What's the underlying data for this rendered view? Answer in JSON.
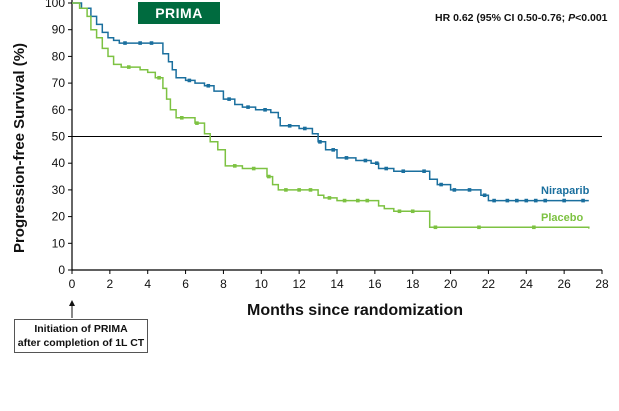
{
  "badge": "PRIMA",
  "hr": {
    "prefix": "HR 0.62 (95% CI 0.50-0.76; ",
    "p_label": "P",
    "p_value": "<0.001"
  },
  "annotation": {
    "line1": "Initiation of PRIMA",
    "line2": "after completion of 1L CT"
  },
  "colors": {
    "niraparib": "#1a6f9e",
    "placebo": "#7dc242",
    "badge": "#006b3f",
    "axis": "#000000"
  },
  "chart_data": {
    "type": "line",
    "step": true,
    "xlabel": "Months since randomization",
    "ylabel": "Progression-free Survival (%)",
    "xlim": [
      0,
      28
    ],
    "ylim": [
      0,
      100
    ],
    "xticks": [
      0,
      2,
      4,
      6,
      8,
      10,
      12,
      14,
      16,
      18,
      20,
      22,
      24,
      26,
      28
    ],
    "yticks": [
      0,
      10,
      20,
      30,
      40,
      50,
      60,
      70,
      80,
      90,
      100
    ],
    "reference_line": {
      "y": 50
    },
    "grid": false,
    "series": [
      {
        "name": "Niraparib",
        "x": [
          0,
          0.5,
          1,
          1.3,
          1.6,
          1.9,
          2.2,
          2.5,
          3,
          4.5,
          4.8,
          5.1,
          5.3,
          5.5,
          6,
          6.5,
          7,
          7.5,
          8,
          8.6,
          9,
          9.7,
          10.5,
          10.9,
          11,
          12,
          12.7,
          13,
          13.4,
          14,
          15,
          15.8,
          16.2,
          17,
          18.9,
          19.3,
          20,
          21.3,
          21.6,
          22,
          23,
          25,
          27.3
        ],
        "y": [
          100,
          98,
          95,
          92,
          89,
          87,
          86,
          85,
          85,
          85,
          81,
          78,
          75,
          72,
          71,
          70,
          69,
          67,
          64,
          62,
          61,
          60,
          59,
          57,
          54,
          53,
          51,
          48,
          45,
          42,
          41,
          40,
          38,
          37,
          34,
          32,
          30,
          30,
          28,
          26,
          26,
          26,
          26
        ],
        "censor_x": [
          2.8,
          3.6,
          4.2,
          6.2,
          7.2,
          8.3,
          9.3,
          10.2,
          11.5,
          12.3,
          13.1,
          13.8,
          14.5,
          15.5,
          16.1,
          16.6,
          17.5,
          18.6,
          19.5,
          20.2,
          21,
          21.8,
          22.3,
          23,
          23.5,
          24,
          24.5,
          25,
          26,
          27
        ]
      },
      {
        "name": "Placebo",
        "x": [
          0,
          0.4,
          0.8,
          1,
          1.3,
          1.6,
          1.9,
          2.2,
          2.6,
          3.6,
          4,
          4.4,
          4.8,
          5,
          5.2,
          5.5,
          6.5,
          7,
          7.3,
          7.7,
          8.1,
          9,
          10.3,
          10.6,
          10.9,
          13,
          13.3,
          14,
          15,
          16,
          16.2,
          16.5,
          17,
          18.7,
          18.9,
          19.5,
          20,
          21.5,
          21.8,
          25,
          27.3
        ],
        "y": [
          100,
          98,
          95,
          90,
          87,
          83,
          80,
          77,
          76,
          75,
          74,
          72,
          68,
          64,
          60,
          57,
          55,
          51,
          48,
          45,
          39,
          38,
          35,
          32,
          30,
          28,
          27,
          26,
          26,
          26,
          24,
          23,
          22,
          22,
          16,
          16,
          16,
          16,
          16,
          16,
          15.5
        ],
        "censor_x": [
          3,
          4.6,
          5.8,
          6.6,
          8.6,
          9.6,
          10.4,
          11.3,
          12,
          12.6,
          13.6,
          14.4,
          15.1,
          15.6,
          17.3,
          18,
          19.2,
          21.5,
          24.4
        ]
      }
    ]
  },
  "series_labels": {
    "niraparib": "Niraparib",
    "placebo": "Placebo"
  }
}
